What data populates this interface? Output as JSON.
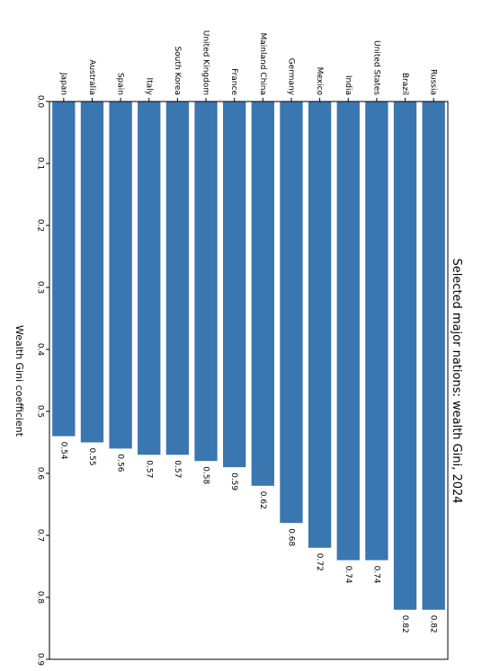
{
  "chart_data": {
    "type": "bar",
    "orientation": "horizontal",
    "title": "Selected major nations: wealth Gini, 2024",
    "xlabel": "Wealth Gini coefficient",
    "ylabel": "",
    "categories": [
      "Japan",
      "Australia",
      "Spain",
      "Italy",
      "South Korea",
      "United Kingdom",
      "France",
      "Mainland China",
      "Germany",
      "Mexico",
      "India",
      "United States",
      "Brazil",
      "Russia"
    ],
    "values": [
      0.54,
      0.55,
      0.56,
      0.57,
      0.57,
      0.58,
      0.59,
      0.62,
      0.68,
      0.72,
      0.74,
      0.74,
      0.82,
      0.82
    ],
    "value_labels": [
      "0.54",
      "0.55",
      "0.56",
      "0.57",
      "0.57",
      "0.58",
      "0.59",
      "0.62",
      "0.68",
      "0.72",
      "0.74",
      "0.74",
      "0.82",
      "0.82"
    ],
    "xlim": [
      0,
      0.9
    ],
    "ticks": [
      0.0,
      0.1,
      0.2,
      0.3,
      0.4,
      0.5,
      0.6,
      0.7,
      0.8,
      0.9
    ],
    "tick_labels": [
      "0.0",
      "0.1",
      "0.2",
      "0.3",
      "0.4",
      "0.5",
      "0.6",
      "0.7",
      "0.8",
      "0.9"
    ],
    "grid": false,
    "bar_color": "#3a76b0",
    "rotation": "90deg-clockwise"
  }
}
